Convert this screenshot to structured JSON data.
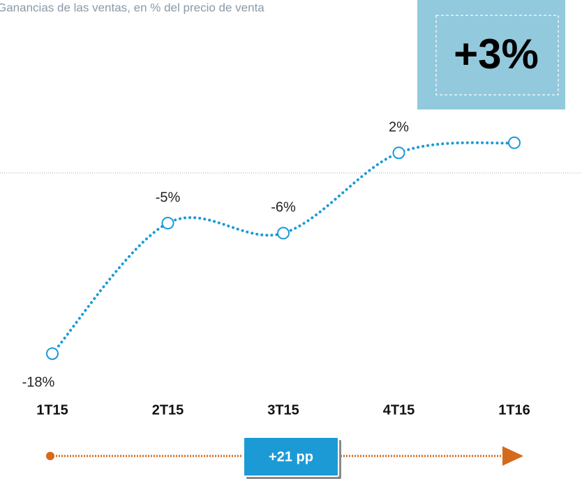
{
  "chart_data": {
    "type": "line",
    "subtitle": "Ganancias de las ventas, en % del precio de venta",
    "categories": [
      "1T15",
      "2T15",
      "3T15",
      "4T15",
      "1T16"
    ],
    "series": [
      {
        "name": "Ganancias",
        "color": "#1b9ad6",
        "values": [
          -18,
          -5,
          -6,
          2,
          3
        ],
        "value_labels": [
          "-18%",
          "-5%",
          "-6%",
          "2%",
          "+3%"
        ]
      }
    ],
    "ylim": [
      -20,
      5
    ],
    "zero_line": 0,
    "annotation": "+21 pp",
    "arrow_color": "#d46a1a",
    "highlight_color": "#92c9dc"
  }
}
